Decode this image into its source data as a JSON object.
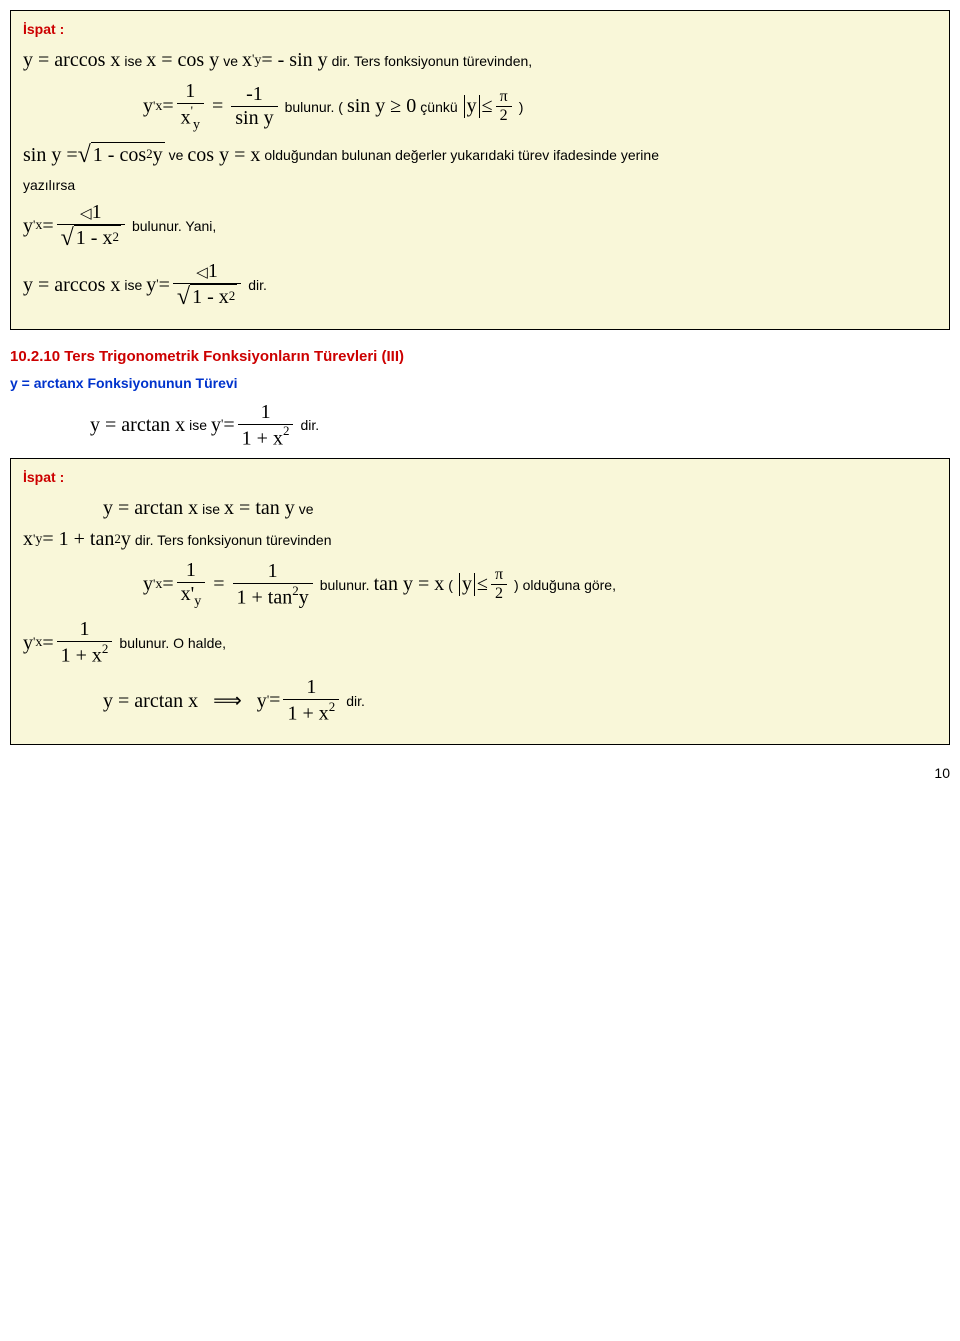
{
  "box1": {
    "ispat": "İspat :",
    "line1_ise": " ise ",
    "line1_ve": " ve ",
    "line1_dir": " dir. Ters fonksiyonun türevinden,",
    "line2_bulunur": " bulunur. ( ",
    "line2_cunku": " çünkü ",
    "line2_close": " )",
    "line3_ve": " ve ",
    "line3_rest": " olduğundan bulunan değerler yukarıdaki türev ifadesinde yerine",
    "line3_yaz": "yazılırsa",
    "line4_bulunur": " bulunur. Yani,",
    "line5_ise": " ise ",
    "line5_dir": " dir."
  },
  "section": {
    "title": "10.2.10 Ters Trigonometrik Fonksiyonların Türevleri (III)",
    "subtitle": "y = arctanx Fonksiyonunun Türevi",
    "ise": " ise ",
    "dir": " dir."
  },
  "box2": {
    "ispat": "İspat :",
    "l1_ise": " ise ",
    "l1_ve": " ve",
    "l2_dir": " dir. Ters fonksiyonun türevinden",
    "l3_bulunur": " bulunur. ",
    "l3_paren": " ( ",
    "l3_close": " ) olduğuna göre,",
    "l4_bulunur": " bulunur. O halde,",
    "l5_dir": " dir."
  },
  "page": "10"
}
